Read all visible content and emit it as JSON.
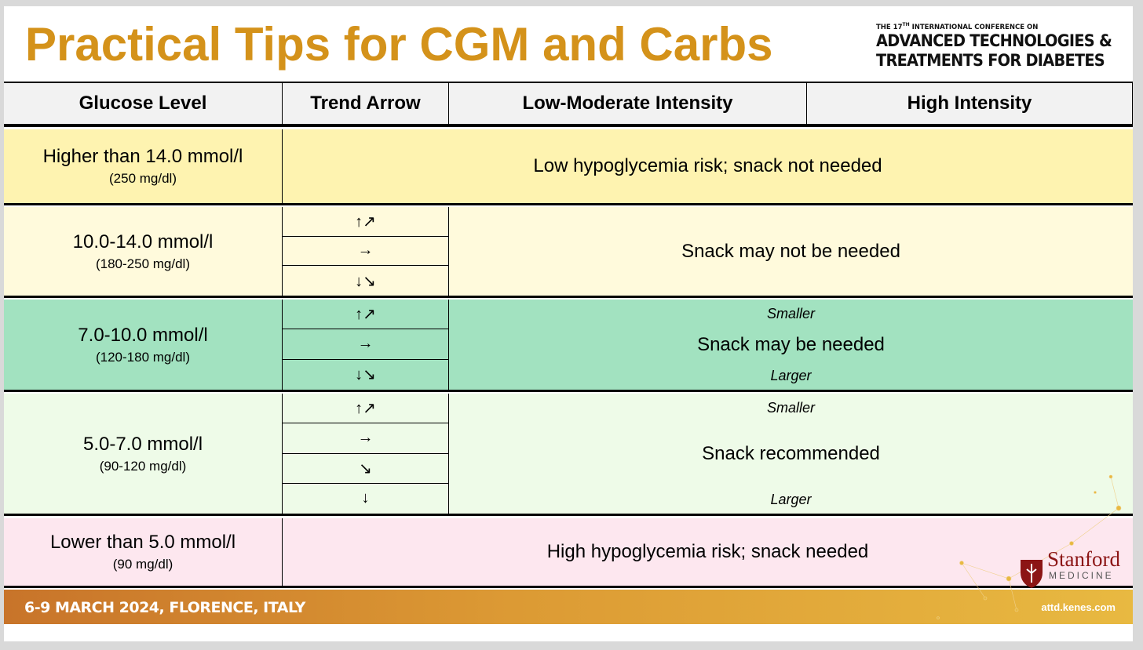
{
  "header": {
    "title": "Practical Tips for CGM and Carbs",
    "conference": {
      "line1_start": "THE 17",
      "line1_sup": "TH",
      "line1_end": " INTERNATIONAL CONFERENCE ON",
      "line2": "ADVANCED TECHNOLOGIES &",
      "line3": "TREATMENTS FOR DIABETES"
    }
  },
  "table": {
    "columns": [
      "Glucose Level",
      "Trend Arrow",
      "Low-Moderate Intensity",
      "High Intensity"
    ],
    "rows": [
      {
        "level": "Higher than 14.0 mmol/l",
        "mgdl": "(250 mg/dl)",
        "advice": "Low hypoglycemia risk; snack not needed"
      },
      {
        "level": "10.0-14.0 mmol/l",
        "mgdl": "(180-250 mg/dl)",
        "arrows": [
          "↑↗",
          "→",
          "↓↘"
        ],
        "advice": "Snack may not be needed"
      },
      {
        "level": "7.0-10.0 mmol/l",
        "mgdl": "(120-180 mg/dl)",
        "arrows": [
          "↑↗",
          "→",
          "↓↘"
        ],
        "advice": "Snack may be needed",
        "smaller": "Smaller",
        "larger": "Larger"
      },
      {
        "level": "5.0-7.0 mmol/l",
        "mgdl": "(90-120 mg/dl)",
        "arrows": [
          "↑↗",
          "→",
          "↘",
          "↓"
        ],
        "advice": "Snack recommended",
        "smaller": "Smaller",
        "larger": "Larger"
      },
      {
        "level": "Lower than 5.0 mmol/l",
        "mgdl": "(90 mg/dl)",
        "advice": "High hypoglycemia risk; snack needed"
      }
    ]
  },
  "footer": {
    "dates": "6-9 MARCH 2024, FLORENCE, ITALY",
    "url": "attd.kenes.com"
  },
  "logo": {
    "name": "Stanford",
    "sub": "MEDICINE"
  }
}
